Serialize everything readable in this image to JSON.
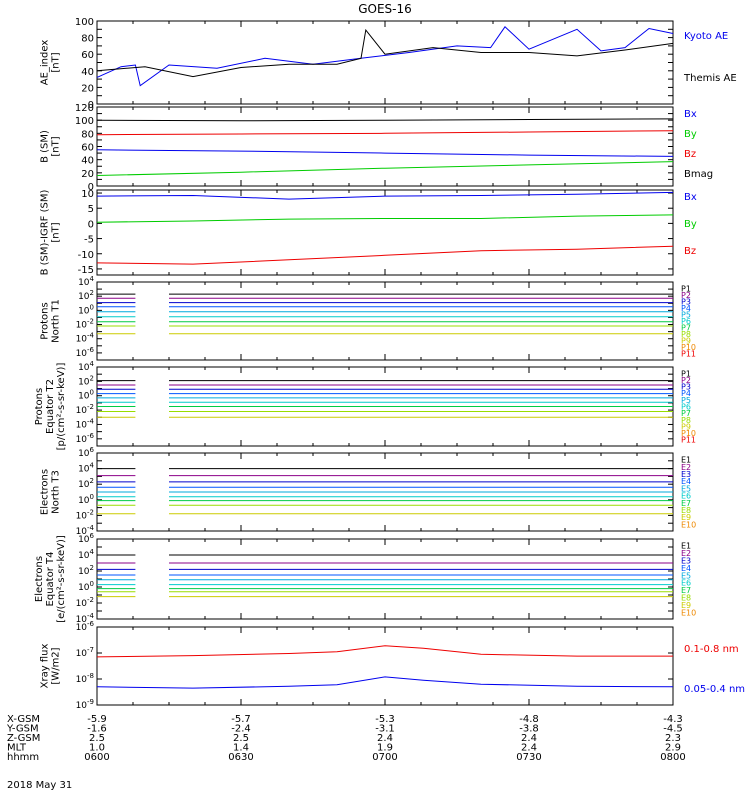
{
  "title": "GOES-16",
  "colors": {
    "black": "#000000",
    "blue": "#0000ee",
    "red": "#ee0000",
    "green": "#00cc00",
    "p_palette": [
      "#000000",
      "#8b0088",
      "#0000cc",
      "#0055ff",
      "#00aadd",
      "#00cccc",
      "#00cc44",
      "#99dd00",
      "#cccc00",
      "#ee8800",
      "#ee0000"
    ],
    "e_palette": [
      "#000000",
      "#8b0088",
      "#0000cc",
      "#0055ff",
      "#00aadd",
      "#00cccc",
      "#00cc44",
      "#99dd00",
      "#cccc00",
      "#ee8800",
      "#ee0000"
    ]
  },
  "time_axis": {
    "start": "06:00",
    "end": "08:00",
    "data_gap": {
      "start": "06:08",
      "end": "06:15"
    },
    "tick_times": [
      "06:00",
      "06:30",
      "07:00",
      "07:30",
      "08:00"
    ]
  },
  "chart_data": [
    {
      "type": "line",
      "id": "ae",
      "ylabel": [
        "AE_index",
        "[nT]"
      ],
      "ylim": [
        0,
        100
      ],
      "yticks": [
        0,
        10,
        20,
        30,
        40,
        50,
        60,
        70,
        80,
        90,
        100
      ],
      "ytick_labels": [
        "0",
        "20",
        "40",
        "60",
        "80",
        "100"
      ],
      "series": [
        {
          "name": "Kyoto AE",
          "color": "blue",
          "x": [
            "06:00",
            "06:05",
            "06:08",
            "06:09",
            "06:15",
            "06:25",
            "06:35",
            "06:45",
            "06:55",
            "07:05",
            "07:15",
            "07:22",
            "07:25",
            "07:30",
            "07:40",
            "07:45",
            "07:50",
            "07:55",
            "08:00"
          ],
          "y": [
            32,
            45,
            47,
            22,
            47,
            43,
            55,
            48,
            55,
            62,
            70,
            68,
            93,
            66,
            90,
            64,
            68,
            91,
            85
          ]
        },
        {
          "name": "Themis AE",
          "color": "black",
          "x": [
            "06:00",
            "06:10",
            "06:20",
            "06:30",
            "06:40",
            "06:50",
            "06:55",
            "06:56",
            "07:00",
            "07:10",
            "07:20",
            "07:30",
            "07:40",
            "07:50",
            "08:00"
          ],
          "y": [
            40,
            45,
            33,
            44,
            48,
            48,
            55,
            89,
            60,
            68,
            62,
            62,
            58,
            65,
            73
          ]
        }
      ]
    },
    {
      "type": "line",
      "id": "bsm",
      "ylabel": [
        "B (SM)",
        "[nT]"
      ],
      "ylim": [
        0,
        120
      ],
      "yticks": [
        0,
        10,
        20,
        30,
        40,
        50,
        60,
        70,
        80,
        90,
        100,
        110,
        120
      ],
      "ytick_labels": [
        "0",
        "20",
        "40",
        "60",
        "80",
        "100",
        "120"
      ],
      "series": [
        {
          "name": "Bx",
          "color": "blue",
          "x": [
            "06:00",
            "06:30",
            "07:00",
            "07:30",
            "08:00"
          ],
          "y": [
            55,
            53,
            50,
            47,
            45
          ]
        },
        {
          "name": "By",
          "color": "green",
          "x": [
            "06:00",
            "06:30",
            "07:00",
            "07:30",
            "08:00"
          ],
          "y": [
            16,
            21,
            27,
            32,
            37
          ]
        },
        {
          "name": "Bz",
          "color": "red",
          "x": [
            "06:00",
            "06:30",
            "07:00",
            "07:30",
            "08:00"
          ],
          "y": [
            78,
            79,
            80,
            82,
            84
          ]
        },
        {
          "name": "Bmag",
          "color": "black",
          "x": [
            "06:00",
            "06:30",
            "07:00",
            "07:30",
            "08:00"
          ],
          "y": [
            100,
            99,
            100,
            101,
            102
          ]
        }
      ]
    },
    {
      "type": "line",
      "id": "bres",
      "ylabel": [
        "B (SM)-IGRF (SM)",
        "[nT]"
      ],
      "ylim": [
        -17,
        11
      ],
      "yticks": [
        -15,
        -10,
        -5,
        0,
        5,
        10
      ],
      "ytick_labels": [
        "-15",
        "-10",
        "-5",
        "0",
        "5",
        "10"
      ],
      "series": [
        {
          "name": "Bx",
          "color": "blue",
          "x": [
            "06:00",
            "06:20",
            "06:40",
            "07:00",
            "07:20",
            "07:40",
            "08:00"
          ],
          "y": [
            9.0,
            9.2,
            8.0,
            9.0,
            9.2,
            9.6,
            10.2
          ]
        },
        {
          "name": "By",
          "color": "green",
          "x": [
            "06:00",
            "06:20",
            "06:40",
            "07:00",
            "07:20",
            "07:40",
            "08:00"
          ],
          "y": [
            0.4,
            0.8,
            1.4,
            1.6,
            1.6,
            2.4,
            2.8
          ]
        },
        {
          "name": "Bz",
          "color": "red",
          "x": [
            "06:00",
            "06:20",
            "06:40",
            "07:00",
            "07:20",
            "07:40",
            "08:00"
          ],
          "y": [
            -13,
            -13.4,
            -12,
            -10.5,
            -9,
            -8.5,
            -7.5
          ]
        }
      ]
    },
    {
      "type": "line",
      "id": "prot1",
      "scale": "log",
      "ylabel": [
        "Protons",
        "North T1"
      ],
      "ylim": [
        -7,
        4
      ],
      "yticks": [
        4,
        3,
        2,
        1,
        0,
        -1,
        -2,
        -3,
        -4,
        -5,
        -6,
        -7
      ],
      "ytick_labels": [
        {
          "base": "10",
          "exp": "4",
          "at": 4
        },
        {
          "base": "10",
          "exp": "2",
          "at": 2
        },
        {
          "base": "10",
          "exp": "0",
          "at": 0
        },
        {
          "base": "10",
          "exp": "-2",
          "at": -2
        },
        {
          "base": "10",
          "exp": "-4",
          "at": -4
        },
        {
          "base": "10",
          "exp": "-6",
          "at": -6
        }
      ],
      "channels": [
        "P1",
        "P2",
        "P3",
        "P4",
        "P5",
        "P6",
        "P7",
        "P8",
        "P9",
        "P10",
        "P11"
      ],
      "levels": [
        2.3,
        1.7,
        1.1,
        0.5,
        -0.2,
        -0.9,
        -1.6,
        -2.2,
        -3.3,
        null,
        null
      ]
    },
    {
      "type": "line",
      "id": "prot2",
      "scale": "log",
      "ylabel": [
        "Protons",
        "Equator T2",
        "[p/(cm²-s-sr-keV)]"
      ],
      "ylim": [
        -7,
        4
      ],
      "yticks": [
        4,
        3,
        2,
        1,
        0,
        -1,
        -2,
        -3,
        -4,
        -5,
        -6,
        -7
      ],
      "ytick_labels": [
        {
          "base": "10",
          "exp": "4",
          "at": 4
        },
        {
          "base": "10",
          "exp": "2",
          "at": 2
        },
        {
          "base": "10",
          "exp": "0",
          "at": 0
        },
        {
          "base": "10",
          "exp": "-2",
          "at": -2
        },
        {
          "base": "10",
          "exp": "-4",
          "at": -4
        },
        {
          "base": "10",
          "exp": "-6",
          "at": -6
        }
      ],
      "channels": [
        "P1",
        "P2",
        "P3",
        "P4",
        "P5",
        "P6",
        "P7",
        "P8",
        "P9",
        "P10",
        "P11"
      ],
      "levels": [
        2.1,
        1.5,
        0.9,
        0.3,
        -0.3,
        -0.9,
        -1.5,
        -2.2,
        -3.0,
        null,
        null
      ]
    },
    {
      "type": "line",
      "id": "elec3",
      "scale": "log",
      "ylabel": [
        "Electrons",
        "North T3"
      ],
      "ylim": [
        -4,
        6
      ],
      "yticks": [
        6,
        5,
        4,
        3,
        2,
        1,
        0,
        -1,
        -2,
        -3,
        -4
      ],
      "ytick_labels": [
        {
          "base": "10",
          "exp": "6",
          "at": 6
        },
        {
          "base": "10",
          "exp": "4",
          "at": 4
        },
        {
          "base": "10",
          "exp": "2",
          "at": 2
        },
        {
          "base": "10",
          "exp": "0",
          "at": 0
        },
        {
          "base": "10",
          "exp": "-2",
          "at": -2
        },
        {
          "base": "10",
          "exp": "-4",
          "at": -4
        }
      ],
      "channels": [
        "E1",
        "E2",
        "E3",
        "E4",
        "E5",
        "E6",
        "E7",
        "E8",
        "E9",
        "E10"
      ],
      "levels": [
        4.0,
        3.1,
        2.3,
        1.6,
        1.0,
        0.4,
        -0.1,
        -0.7,
        -1.8,
        null
      ]
    },
    {
      "type": "line",
      "id": "elec4",
      "scale": "log",
      "ylabel": [
        "Electrons",
        "Equator T4",
        "[e/(cm²-s-sr-keV)]"
      ],
      "ylim": [
        -4,
        6
      ],
      "yticks": [
        6,
        5,
        4,
        3,
        2,
        1,
        0,
        -1,
        -2,
        -3,
        -4
      ],
      "ytick_labels": [
        {
          "base": "10",
          "exp": "6",
          "at": 6
        },
        {
          "base": "10",
          "exp": "4",
          "at": 4
        },
        {
          "base": "10",
          "exp": "2",
          "at": 2
        },
        {
          "base": "10",
          "exp": "0",
          "at": 0
        },
        {
          "base": "10",
          "exp": "-2",
          "at": -2
        },
        {
          "base": "10",
          "exp": "-4",
          "at": -4
        }
      ],
      "channels": [
        "E1",
        "E2",
        "E3",
        "E4",
        "E5",
        "E6",
        "E7",
        "E8",
        "E9",
        "E10"
      ],
      "levels": [
        4.0,
        3.0,
        2.2,
        1.5,
        0.9,
        0.3,
        -0.2,
        -0.6,
        -1.2,
        null
      ]
    },
    {
      "type": "line",
      "id": "xray",
      "scale": "log",
      "ylabel": [
        "Xray flux",
        "[W/m2]"
      ],
      "ylim": [
        -9,
        -6
      ],
      "yticks": [
        -6,
        -7,
        -8,
        -9
      ],
      "ytick_labels": [
        {
          "base": "10",
          "exp": "-6",
          "at": -6
        },
        {
          "base": "10",
          "exp": "-7",
          "at": -7
        },
        {
          "base": "10",
          "exp": "-8",
          "at": -8
        },
        {
          "base": "10",
          "exp": "-9",
          "at": -9
        }
      ],
      "series": [
        {
          "name": "0.1-0.8 nm",
          "color": "red",
          "x": [
            "06:00",
            "06:20",
            "06:40",
            "06:50",
            "07:00",
            "07:08",
            "07:20",
            "07:40",
            "08:00"
          ],
          "y": [
            -7.15,
            -7.1,
            -7.02,
            -6.95,
            -6.72,
            -6.82,
            -7.05,
            -7.12,
            -7.12
          ]
        },
        {
          "name": "0.05-0.4 nm",
          "color": "blue",
          "x": [
            "06:00",
            "06:20",
            "06:40",
            "06:50",
            "07:00",
            "07:08",
            "07:20",
            "07:40",
            "08:00"
          ],
          "y": [
            -8.3,
            -8.35,
            -8.28,
            -8.22,
            -7.92,
            -8.05,
            -8.2,
            -8.28,
            -8.3
          ]
        }
      ]
    }
  ],
  "orbit": {
    "rows": [
      {
        "label": "X-GSM",
        "values": [
          "-5.9",
          "-5.7",
          "-5.3",
          "-4.8",
          "-4.3"
        ]
      },
      {
        "label": "Y-GSM",
        "values": [
          "-1.6",
          "-2.4",
          "-3.1",
          "-3.8",
          "-4.5"
        ]
      },
      {
        "label": "Z-GSM",
        "values": [
          "2.5",
          "2.5",
          "2.4",
          "2.4",
          "2.3"
        ]
      },
      {
        "label": "MLT",
        "values": [
          "1.0",
          "1.4",
          "1.9",
          "2.4",
          "2.9"
        ]
      },
      {
        "label": "hhmm",
        "values": [
          "0600",
          "0630",
          "0700",
          "0730",
          "0800"
        ]
      }
    ],
    "date": "2018 May 31"
  }
}
